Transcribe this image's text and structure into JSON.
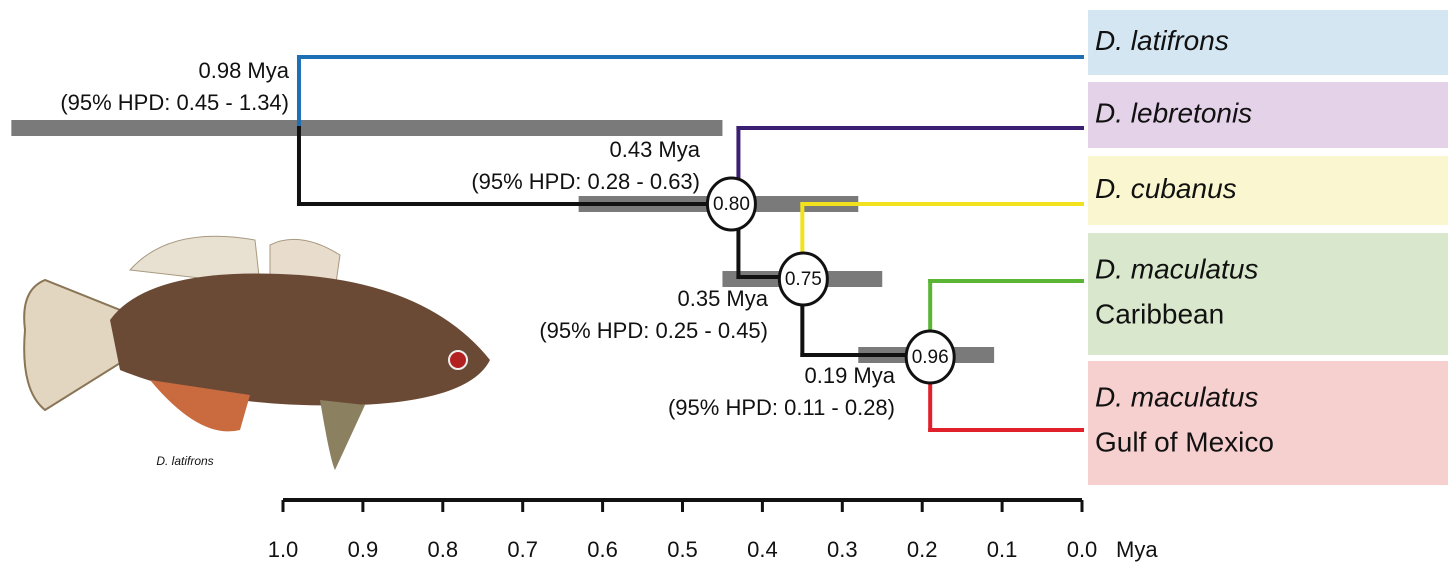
{
  "chart_data": {
    "type": "tree",
    "x_label": "Mya",
    "xlim": [
      1,
      0
    ],
    "xticks": [
      {
        "value": 1,
        "label": "1.0"
      },
      0.9,
      0.8,
      0.7,
      0.6,
      0.5,
      0.4,
      0.3,
      0.2,
      0.1,
      {
        "value": 0,
        "label": "0.0"
      }
    ],
    "taxa": [
      {
        "name": "D. latifrons",
        "color": "#1f6fb5",
        "box": "#d5e6f3"
      },
      {
        "name": "D. lebretonis",
        "color": "#3b1f73",
        "box": "#e4d3e8"
      },
      {
        "name": "D. cubanus",
        "color": "#f2e21d",
        "box": "#faf6cf"
      },
      {
        "name": "D. maculatus",
        "subname": "Caribbean",
        "color": "#5ab535",
        "box": "#d9e8cc"
      },
      {
        "name": "D. maculatus",
        "subname": "Gulf of Mexico",
        "color": "#e0202a",
        "box": "#f6cfcf"
      }
    ],
    "nodes": [
      {
        "age": 0.98,
        "age_label": "0.98 Mya",
        "hpd": [
          0.45,
          1.34
        ],
        "hpd_label": "(95% HPD: 0.45 - 1.34)"
      },
      {
        "age": 0.43,
        "age_label": "0.43 Mya",
        "hpd": [
          0.28,
          0.63
        ],
        "hpd_label": "(95% HPD: 0.28 - 0.63)",
        "posterior": 0.8,
        "posterior_label": "0.80"
      },
      {
        "age": 0.35,
        "age_label": "0.35 Mya",
        "hpd": [
          0.25,
          0.45
        ],
        "hpd_label": "(95% HPD: 0.25 - 0.45)",
        "posterior": 0.75,
        "posterior_label": "0.75"
      },
      {
        "age": 0.19,
        "age_label": "0.19 Mya",
        "hpd": [
          0.11,
          0.28
        ],
        "hpd_label": "(95% HPD: 0.11 - 0.28)",
        "posterior": 0.96,
        "posterior_label": "0.96"
      }
    ],
    "image_caption": "D. latifrons"
  }
}
